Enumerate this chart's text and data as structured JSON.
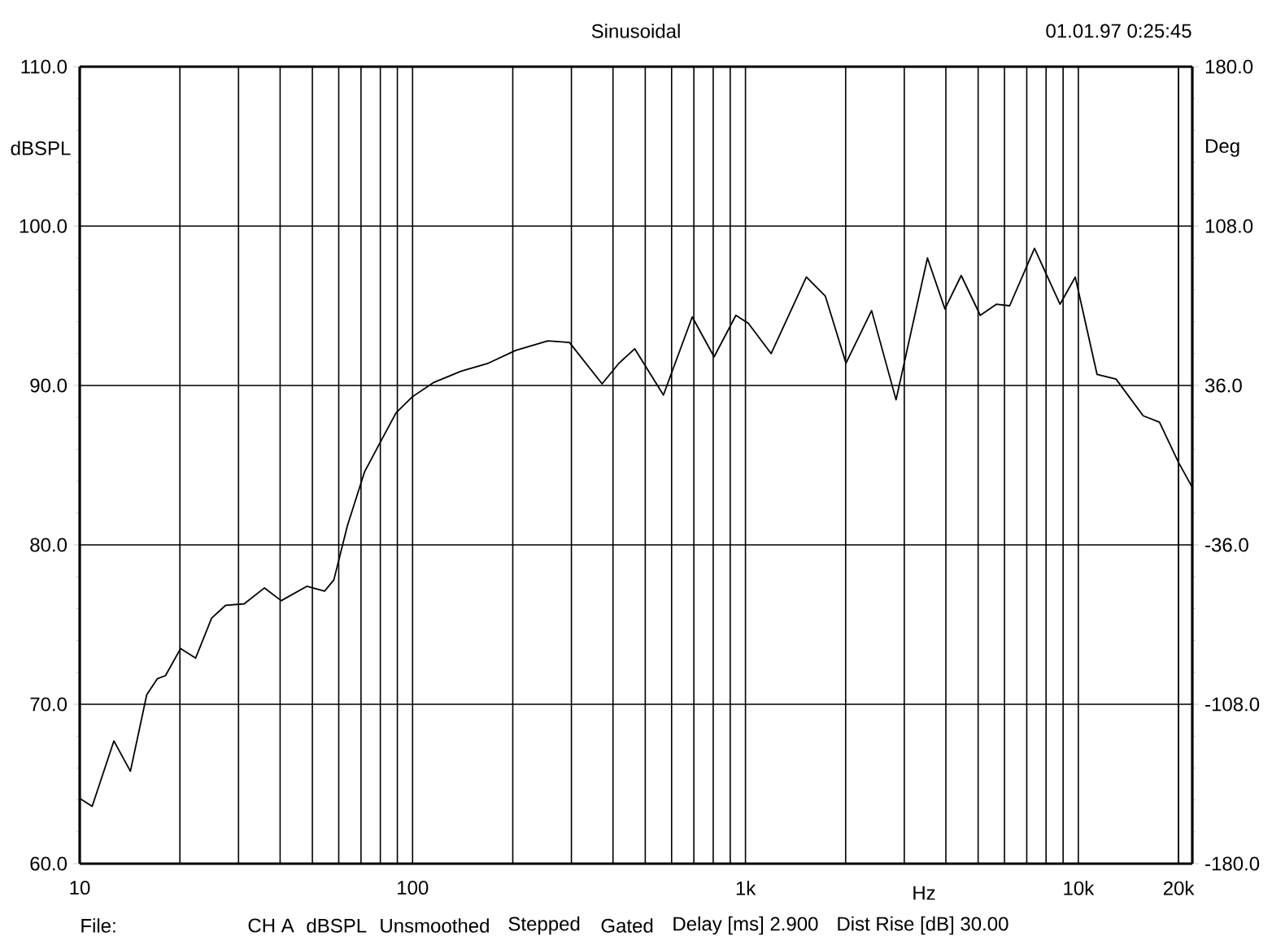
{
  "chart_data": {
    "type": "line",
    "title": "Sinusoidal",
    "xlabel": "Hz",
    "ylabel": "dBSPL",
    "y2label": "Deg",
    "annotations": [
      "01.01.97 0:25:45",
      "File:",
      "CH A",
      "dBSPL",
      "Unsmoothed",
      "Stepped",
      "Gated",
      "Delay [ms] 2.900",
      "Dist Rise [dB] 30.00"
    ],
    "log": "x",
    "grid": true,
    "marker": "none",
    "line_style": "solid",
    "color": "#000000",
    "xlim": [
      10,
      22000
    ],
    "xticks": [
      10,
      100,
      {
        "value": 1000,
        "label": "1k"
      },
      {
        "value": 10000,
        "label": "10k"
      },
      {
        "value": 20000,
        "label": "20k"
      }
    ],
    "ylim": [
      60,
      110
    ],
    "yticks": [
      {
        "value": 60,
        "label": "60.0"
      },
      {
        "value": 70,
        "label": "70.0"
      },
      {
        "value": 80,
        "label": "80.0"
      },
      {
        "value": 90,
        "label": "90.0"
      },
      {
        "value": 100,
        "label": "100.0"
      },
      {
        "value": 110,
        "label": "110.0"
      }
    ],
    "y2lim": [
      -180,
      180
    ],
    "y2ticks": [
      {
        "value": -180,
        "label": "-180.0"
      },
      {
        "value": -108,
        "label": "-108.0"
      },
      {
        "value": -36,
        "label": "-36.0"
      },
      {
        "value": 36,
        "label": "36.0"
      },
      {
        "value": 108,
        "label": "108.0"
      },
      {
        "value": 180,
        "label": "180.0"
      }
    ],
    "x": [
      10,
      10.9,
      12.67,
      14.2,
      15.9,
      17.1,
      18.1,
      20.1,
      22.3,
      24.9,
      27.4,
      31.2,
      35.9,
      40.3,
      48.1,
      54.4,
      58,
      63.7,
      71.8,
      79.8,
      89.3,
      100,
      116,
      140,
      169,
      204,
      255,
      296,
      371,
      417,
      465,
      567,
      692,
      805,
      936,
      1020,
      1194,
      1524,
      1738,
      2004,
      2393,
      2834,
      3522,
      3974,
      4448,
      5074,
      5679,
      6218,
      7385,
      8812,
      9790,
      11380,
      12980,
      15660,
      17530,
      19970,
      22000
    ],
    "values": [
      64.1,
      63.6,
      67.7,
      65.8,
      70.6,
      71.6,
      71.8,
      73.5,
      72.9,
      75.4,
      76.2,
      76.3,
      77.3,
      76.5,
      77.4,
      77.1,
      77.8,
      81.2,
      84.6,
      86.4,
      88.3,
      89.3,
      90.2,
      90.9,
      91.4,
      92.2,
      92.8,
      92.7,
      90.1,
      91.4,
      92.3,
      89.4,
      94.3,
      91.8,
      94.4,
      93.9,
      92.0,
      96.8,
      95.6,
      91.4,
      94.7,
      89.1,
      98.0,
      94.8,
      96.9,
      94.4,
      95.1,
      95.0,
      98.6,
      95.1,
      96.8,
      90.7,
      90.4,
      88.1,
      87.7,
      85.2,
      83.6
    ]
  }
}
